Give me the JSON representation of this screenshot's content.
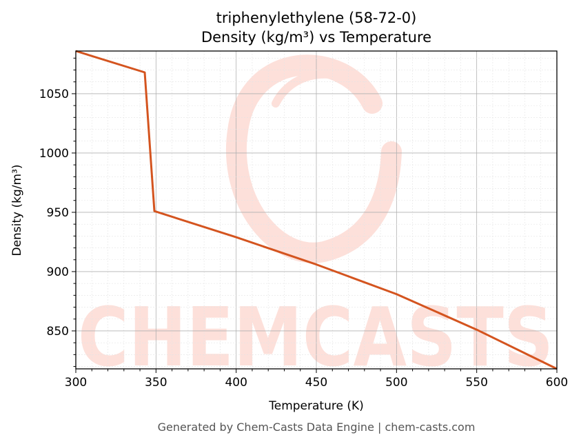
{
  "chart_data": {
    "type": "line",
    "title": "triphenylethylene (58-72-0)",
    "subtitle": "Density (kg/m³) vs Temperature",
    "xlabel": "Temperature (K)",
    "ylabel": "Density (kg/m³)",
    "xlim": [
      300,
      600
    ],
    "ylim": [
      818,
      1086
    ],
    "xticks": [
      300,
      350,
      400,
      450,
      500,
      550,
      600
    ],
    "yticks": [
      850,
      900,
      950,
      1000,
      1050
    ],
    "grid": true,
    "series": [
      {
        "color": "#d4541f",
        "x": [
          300,
          343,
          349,
          400,
          450,
          500,
          550,
          600
        ],
        "y": [
          1086,
          1068,
          951,
          929,
          906,
          881,
          851,
          818
        ]
      }
    ]
  },
  "watermark": {
    "text": "CHEMCASTS",
    "color": "#fde0da"
  },
  "footer": "Generated by Chem-Casts Data Engine | chem-casts.com"
}
